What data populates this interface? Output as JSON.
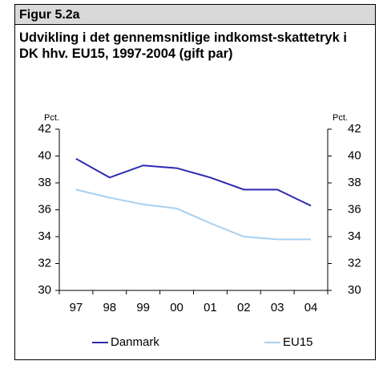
{
  "chart_data": {
    "type": "line",
    "figure_label": "Figur 5.2a",
    "title": "Udvikling i det gennemsnitlige indkomst-skattetryk i DK hhv. EU15, 1997-2004 (gift par)",
    "ylabel": "Pct.",
    "y2label": "Pct.",
    "categories": [
      "97",
      "98",
      "99",
      "00",
      "01",
      "02",
      "03",
      "04"
    ],
    "series": [
      {
        "name": "Danmark",
        "color": "#2b2bb0",
        "values": [
          39.8,
          38.4,
          39.3,
          39.1,
          38.4,
          37.5,
          37.5,
          36.3
        ]
      },
      {
        "name": "EU15",
        "color": "#a8d0f0",
        "values": [
          37.5,
          36.9,
          36.4,
          36.1,
          35.0,
          34.0,
          33.8,
          33.8
        ]
      }
    ],
    "ylim": [
      30,
      42
    ],
    "yticks": [
      30,
      32,
      34,
      36,
      38,
      40,
      42
    ],
    "y2lim": [
      30,
      42
    ],
    "y2ticks": [
      30,
      32,
      34,
      36,
      38,
      40,
      42
    ],
    "legend": "bottom"
  }
}
